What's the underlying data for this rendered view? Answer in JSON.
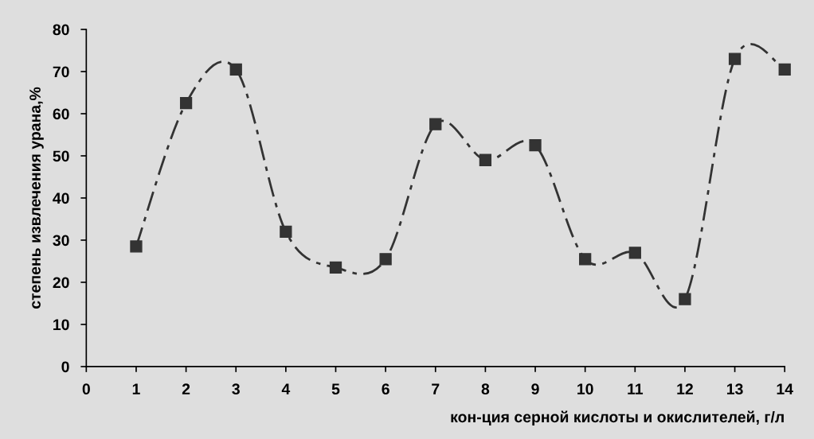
{
  "chart_data": {
    "type": "line",
    "xlabel": "кон-ция серной кислоты и окислителей, г/л",
    "ylabel": "степень извлечения урана,%",
    "x": [
      1,
      2,
      3,
      4,
      5,
      6,
      7,
      8,
      9,
      10,
      11,
      12,
      13,
      14
    ],
    "series": [
      {
        "color": "#333333",
        "values": [
          28.5,
          62.5,
          70.5,
          32,
          23.5,
          25.5,
          57.5,
          49,
          52.5,
          25.5,
          27,
          16,
          73,
          70.5
        ]
      }
    ],
    "xlim": [
      0,
      14
    ],
    "xticks": [
      0,
      1,
      2,
      3,
      4,
      5,
      6,
      7,
      8,
      9,
      10,
      11,
      12,
      13,
      14
    ],
    "ylim": [
      0,
      80
    ],
    "yticks": [
      0,
      10,
      20,
      30,
      40,
      50,
      60,
      70,
      80
    ],
    "grid": false,
    "legend": false,
    "marker": "square",
    "line_style": "dashed"
  }
}
